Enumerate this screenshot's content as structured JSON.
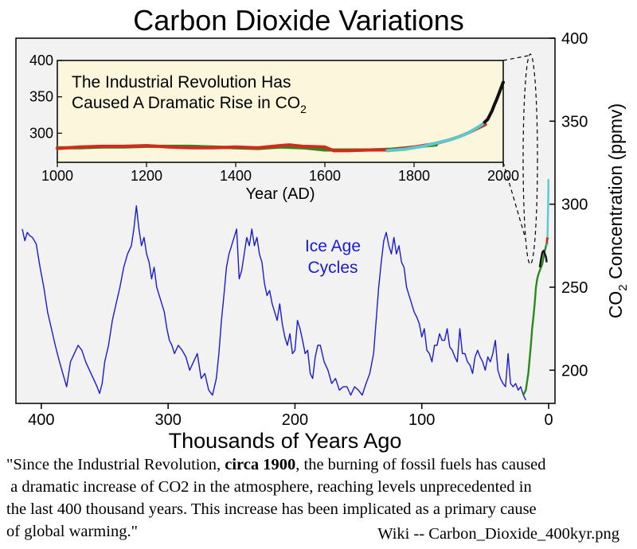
{
  "chart_data": [
    {
      "type": "line",
      "title": "Carbon Dioxide Variations",
      "xlabel": "Thousands of Years Ago",
      "ylabel_prefix": "CO",
      "ylabel_subscript": "2",
      "ylabel_suffix": " Concentration (ppmv)",
      "xlim": [
        420,
        -5
      ],
      "ylim": [
        180,
        400
      ],
      "x_ticks": [
        400,
        300,
        200,
        100,
        0
      ],
      "x_tick_labels": [
        "400",
        "300",
        "200",
        "100",
        "0"
      ],
      "y_ticks": [
        200,
        250,
        300,
        350,
        400
      ],
      "y_tick_labels": [
        "200",
        "250",
        "300",
        "350",
        "400"
      ],
      "annotation": {
        "line1": "Ice Age",
        "line2": "Cycles",
        "color": "#1a1ad6"
      },
      "background": "#f2f2f2",
      "series": [
        {
          "color": "#1a1ad6",
          "x": [
            415,
            413,
            411,
            409,
            407,
            404,
            401,
            398,
            395,
            392,
            389,
            386,
            383,
            380,
            377,
            374,
            371,
            368,
            365,
            362,
            359,
            356,
            354,
            352,
            350,
            347,
            344,
            341,
            338,
            335,
            332,
            329,
            327,
            325,
            323,
            321,
            319,
            317,
            315,
            313,
            311,
            309,
            307,
            305,
            303,
            301,
            299,
            297,
            295,
            292,
            289,
            286,
            283,
            280,
            277,
            274,
            271,
            268,
            265,
            262,
            260,
            258,
            256,
            254,
            252,
            250,
            248,
            246,
            244,
            242,
            240,
            238,
            236,
            234,
            232,
            230,
            228,
            226,
            224,
            222,
            220,
            218,
            216,
            214,
            212,
            210,
            208,
            206,
            204,
            202,
            200,
            198,
            196,
            194,
            192,
            190,
            188,
            186,
            184,
            182,
            180,
            177,
            174,
            171,
            168,
            165,
            162,
            159,
            156,
            153,
            150,
            147,
            144,
            141,
            138,
            136,
            134,
            132,
            130,
            128,
            126,
            124,
            122,
            120,
            118,
            116,
            114,
            112,
            110,
            108,
            106,
            104,
            102,
            100,
            98,
            96,
            94,
            92,
            90,
            88,
            86,
            84,
            82,
            80,
            78,
            76,
            74,
            72,
            70,
            68,
            66,
            64,
            62,
            60,
            58,
            56,
            54,
            52,
            50,
            48,
            46,
            44,
            42,
            40,
            38,
            36,
            34,
            32,
            30,
            28,
            26,
            24,
            22,
            20,
            18
          ],
          "y": [
            285,
            278,
            283,
            281,
            280,
            276,
            262,
            250,
            235,
            225,
            215,
            206,
            198,
            190,
            205,
            210,
            215,
            212,
            205,
            200,
            195,
            190,
            186,
            192,
            205,
            215,
            230,
            240,
            250,
            262,
            270,
            275,
            285,
            299,
            285,
            275,
            280,
            270,
            265,
            255,
            262,
            250,
            245,
            240,
            235,
            225,
            218,
            215,
            210,
            215,
            212,
            208,
            200,
            205,
            210,
            195,
            198,
            188,
            185,
            195,
            210,
            230,
            245,
            262,
            270,
            275,
            280,
            285,
            255,
            260,
            270,
            280,
            275,
            285,
            275,
            280,
            270,
            265,
            252,
            245,
            248,
            240,
            235,
            230,
            240,
            228,
            220,
            215,
            222,
            210,
            212,
            230,
            225,
            218,
            210,
            212,
            198,
            195,
            208,
            215,
            215,
            205,
            200,
            192,
            195,
            188,
            190,
            190,
            185,
            190,
            188,
            185,
            192,
            198,
            210,
            230,
            250,
            265,
            278,
            283,
            275,
            270,
            280,
            270,
            275,
            265,
            262,
            250,
            245,
            240,
            235,
            232,
            228,
            220,
            225,
            212,
            210,
            205,
            215,
            215,
            222,
            218,
            218,
            225,
            214,
            212,
            208,
            205,
            225,
            210,
            210,
            205,
            203,
            198,
            208,
            212,
            208,
            205,
            200,
            208,
            205,
            210,
            218,
            200,
            195,
            192,
            190,
            210,
            192,
            190,
            192,
            188,
            190,
            185,
            182
          ]
        },
        {
          "color": "#2a8a1e",
          "x": [
            20,
            18,
            16,
            14,
            13,
            12,
            11,
            10,
            9,
            8,
            7,
            6,
            5,
            4,
            3,
            2,
            1,
            0.5
          ],
          "y": [
            185,
            188,
            198,
            215,
            225,
            232,
            240,
            250,
            255,
            258,
            260,
            262,
            264,
            268,
            272,
            275,
            278,
            280
          ]
        },
        {
          "color": "#111111",
          "x": [
            7,
            6,
            5,
            4,
            3,
            2,
            1.5
          ],
          "y": [
            262,
            267,
            271,
            272,
            270,
            268,
            265
          ]
        },
        {
          "color": "#5bc8cc",
          "x": [
            1.2,
            0.8,
            0.5,
            0.3,
            0.15
          ],
          "y": [
            275,
            285,
            295,
            305,
            315
          ]
        },
        {
          "color": "#d42a1e",
          "x": [
            1.5,
            1.2
          ],
          "y": [
            276,
            280
          ]
        }
      ]
    },
    {
      "type": "line",
      "title": "The Industrial Revolution Has Caused A Dramatic Rise in CO",
      "title_line1": "The Industrial Revolution Has",
      "title_line2": "Caused A Dramatic Rise in CO",
      "title_subscript": "2",
      "xlabel": "Year (AD)",
      "xlim": [
        1000,
        2000
      ],
      "ylim": [
        260,
        400
      ],
      "x_ticks": [
        1000,
        1200,
        1400,
        1600,
        1800,
        2000
      ],
      "x_tick_labels": [
        "1000",
        "1200",
        "1400",
        "1600",
        "1800",
        "2000"
      ],
      "y_ticks": [
        300,
        350,
        400
      ],
      "y_tick_labels": [
        "300",
        "350",
        "400"
      ],
      "background": "#fbf6dc",
      "series": [
        {
          "color": "#2a8a1e",
          "x": [
            1000,
            1050,
            1100,
            1150,
            1200,
            1250,
            1300,
            1350,
            1400,
            1450,
            1500,
            1550,
            1600,
            1650,
            1700,
            1750,
            1800,
            1850
          ],
          "y": [
            280,
            280,
            281,
            281,
            282,
            282,
            282,
            281,
            280,
            279,
            281,
            280,
            277,
            277,
            277,
            278,
            281,
            284
          ]
        },
        {
          "color": "#d42a1e",
          "x": [
            1000,
            1050,
            1100,
            1150,
            1200,
            1250,
            1300,
            1350,
            1400,
            1450,
            1500,
            1520,
            1550,
            1600,
            1620,
            1650,
            1700,
            1750,
            1800,
            1850,
            1880,
            1900,
            1920,
            1940,
            1960
          ],
          "y": [
            279,
            281,
            282,
            282,
            283,
            281,
            280,
            280,
            281,
            280,
            283,
            284,
            282,
            281,
            276,
            276,
            277,
            277,
            281,
            286,
            291,
            295,
            300,
            306,
            312
          ]
        },
        {
          "color": "#5bc8cc",
          "x": [
            1740,
            1760,
            1780,
            1800,
            1820,
            1840,
            1860,
            1880,
            1900,
            1920,
            1940,
            1955
          ],
          "y": [
            276,
            277,
            278,
            280,
            282,
            285,
            288,
            291,
            295,
            300,
            307,
            313
          ]
        },
        {
          "color": "#111111",
          "x": [
            1958,
            1965,
            1970,
            1975,
            1980,
            1985,
            1990,
            1995,
            2000
          ],
          "y": [
            315,
            319,
            325,
            331,
            339,
            346,
            354,
            362,
            370
          ]
        }
      ]
    }
  ],
  "caption": {
    "line1_before": "\"Since the Industrial Revolution, ",
    "line1_bold": "circa 1900",
    "line1_after": ", the burning of fossil fuels has caused",
    "line2": " a dramatic increase of CO2 in the atmosphere, reaching levels unprecedented in",
    "line3": "the last 400 thousand years. This increase has been implicated as a primary cause",
    "line4": "of global warming.\""
  },
  "source_note": "Wiki -- Carbon_Dioxide_400kyr.png"
}
